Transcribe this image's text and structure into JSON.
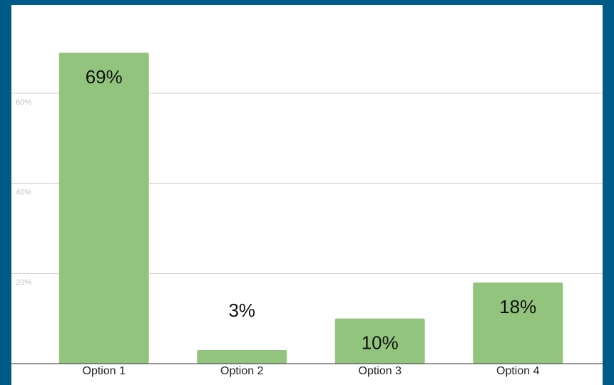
{
  "chart_data": {
    "type": "bar",
    "categories": [
      "Option 1",
      "Option 2",
      "Option 3",
      "Option 4"
    ],
    "values": [
      69,
      3,
      10,
      18
    ],
    "value_labels": [
      "69%",
      "3%",
      "10%",
      "18%"
    ],
    "color": "#93c47d",
    "ylim": [
      0,
      80
    ],
    "yticks": [
      {
        "value": 20,
        "label": "20%"
      },
      {
        "value": 40,
        "label": "40%"
      },
      {
        "value": 60,
        "label": "60%"
      }
    ],
    "grid": true
  }
}
